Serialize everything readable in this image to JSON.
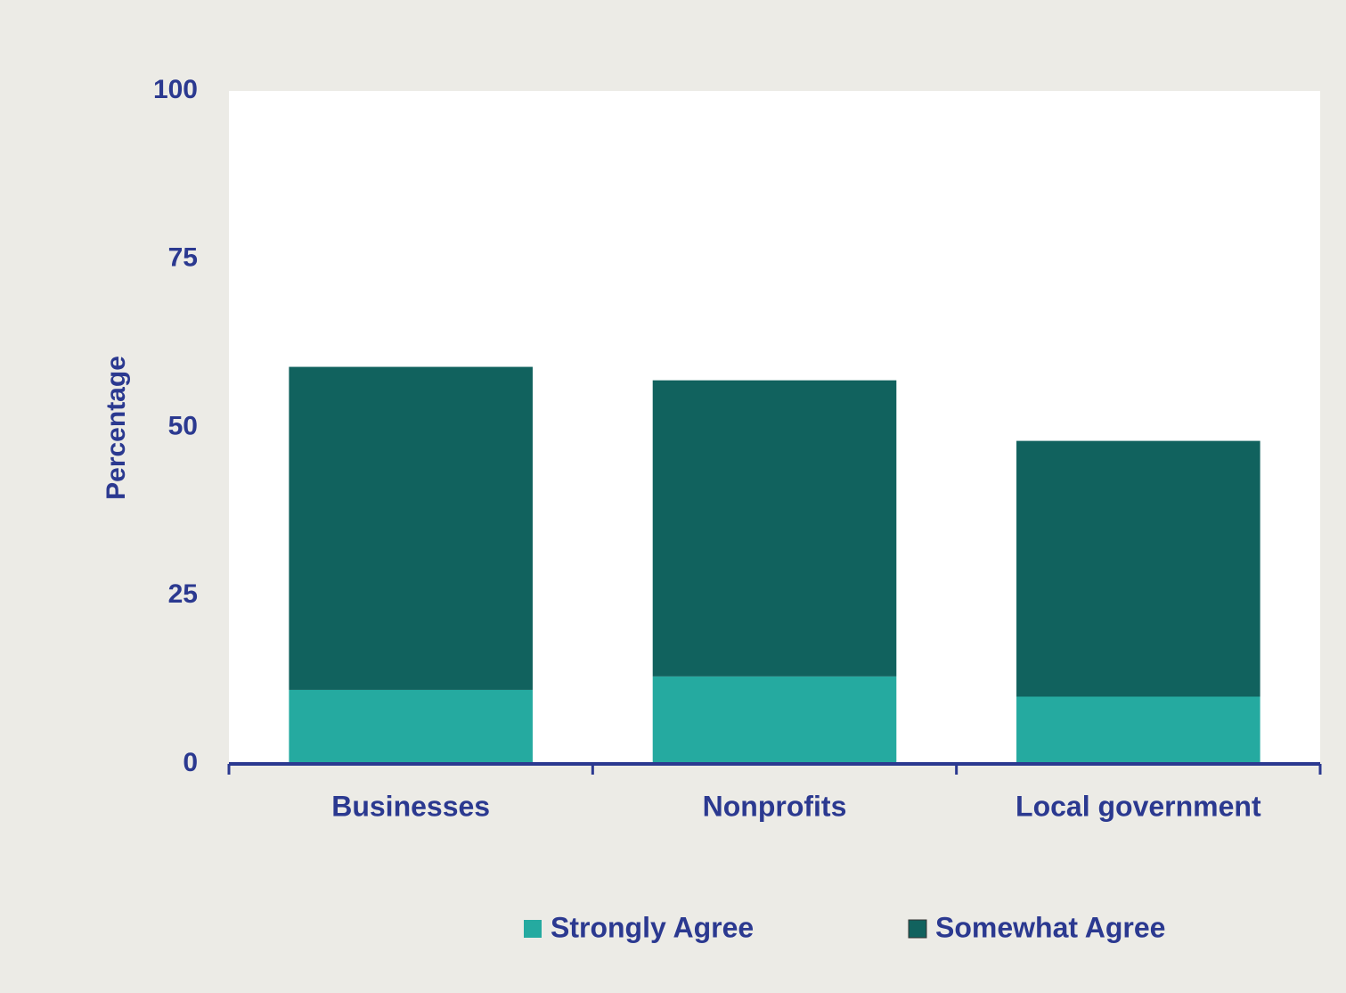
{
  "chart_data": {
    "type": "stacked_bar",
    "y_label": "Percentage",
    "categories": [
      "Businesses",
      "Nonprofits",
      "Local government"
    ],
    "series": [
      {
        "name": "Strongly Agree",
        "color": "#25aaa0",
        "values": [
          11,
          13,
          10
        ]
      },
      {
        "name": "Somewhat Agree",
        "color": "#11625e",
        "values": [
          48,
          44,
          38
        ]
      }
    ],
    "ylim": [
      0,
      100
    ],
    "yticks": [
      0,
      25,
      50,
      75,
      100
    ],
    "grid": false
  }
}
